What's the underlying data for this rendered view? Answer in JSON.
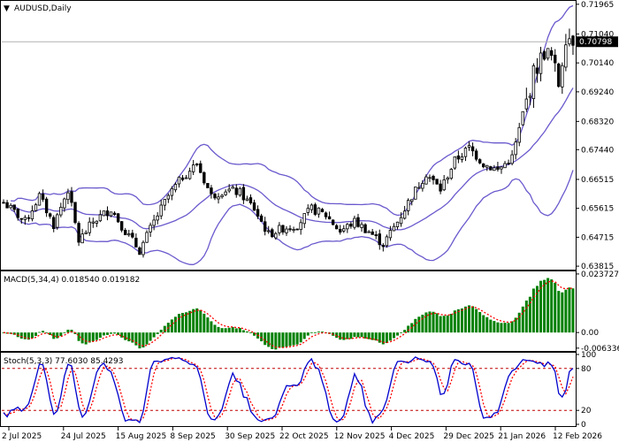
{
  "header": {
    "symbol_label": "AUDUSD,Daily"
  },
  "colors": {
    "candle": "#000000",
    "bollinger": "#6a5acd",
    "macd_hist": "#008000",
    "macd_signal": "#ff0000",
    "stoch_main": "#0000cd",
    "stoch_signal": "#ff0000",
    "level_line": "#c00000",
    "current_price_bg": "#000000",
    "current_price_fg": "#ffffff"
  },
  "x_axis": {
    "labels": [
      "2 Jul 2025",
      "24 Jul 2025",
      "15 Aug 2025",
      "8 Sep 2025",
      "30 Sep 2025",
      "22 Oct 2025",
      "12 Nov 2025",
      "4 Dec 2025",
      "29 Dec 2025",
      "21 Jan 2026",
      "12 Feb 2026"
    ]
  },
  "chart_data": [
    {
      "type": "candlestick",
      "name": "price",
      "title": "AUDUSD,Daily",
      "ylim": [
        0.6379,
        0.7196
      ],
      "y_ticks": [
        "0.71965",
        "0.71040",
        "0.70140",
        "0.69240",
        "0.68320",
        "0.67440",
        "0.66515",
        "0.65615",
        "0.64715",
        "0.63815"
      ],
      "current_price": 0.70798,
      "current_price_label": "0.70798",
      "grid": false,
      "overlays": [
        "bollinger-upper",
        "bollinger-middle",
        "bollinger-lower"
      ]
    },
    {
      "type": "bar",
      "name": "macd",
      "title": "MACD(5,34,4) 0.018540 0.019182",
      "ylim": [
        -0.0064,
        0.0237
      ],
      "y_ticks": [
        "0.023727",
        "0.00",
        "-0.006336"
      ],
      "last_values": [
        0.01854,
        0.019182
      ]
    },
    {
      "type": "line",
      "name": "stochastic",
      "title": "Stoch(5,3,3) 77.6030 85.4293",
      "ylim": [
        0,
        100
      ],
      "y_ticks": [
        "100",
        "80",
        "20",
        "0"
      ],
      "levels": [
        80,
        20
      ],
      "last_values": [
        77.603,
        85.4293
      ]
    }
  ]
}
